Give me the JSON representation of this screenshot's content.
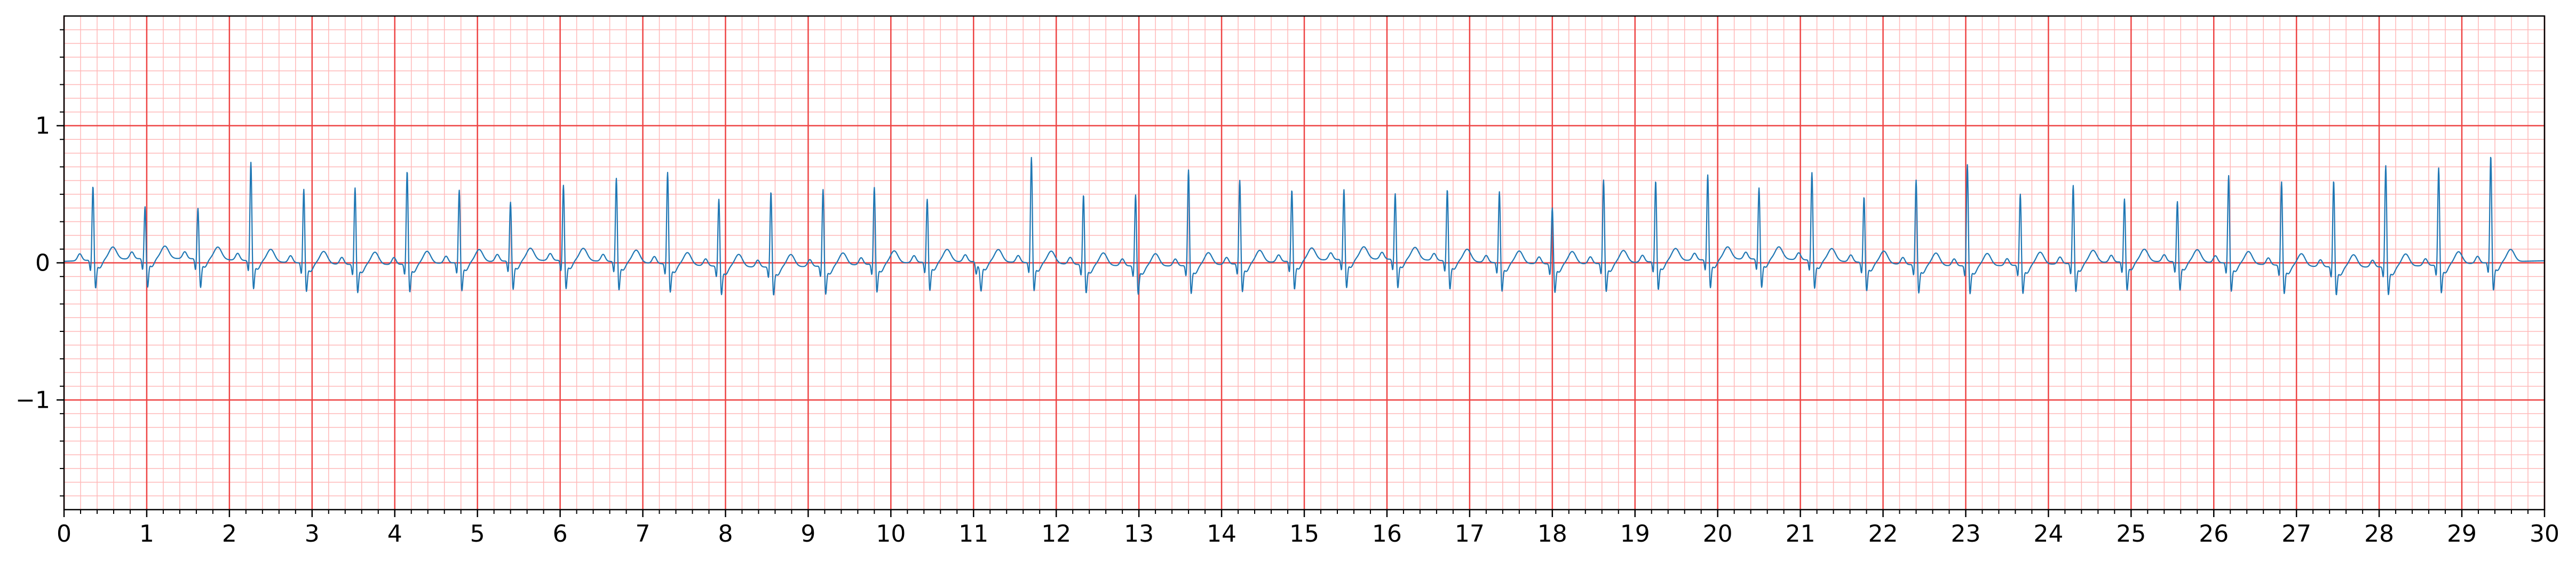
{
  "chart_data": {
    "type": "line",
    "title": "",
    "xlabel": "",
    "ylabel": "",
    "xlim": [
      0,
      30
    ],
    "ylim": [
      -1.8,
      1.8
    ],
    "x_ticks": [
      0,
      1,
      2,
      3,
      4,
      5,
      6,
      7,
      8,
      9,
      10,
      11,
      12,
      13,
      14,
      15,
      16,
      17,
      18,
      19,
      20,
      21,
      22,
      23,
      24,
      25,
      26,
      27,
      28,
      29,
      30
    ],
    "x_tick_labels": [
      "0",
      "1",
      "2",
      "3",
      "4",
      "5",
      "6",
      "7",
      "8",
      "9",
      "10",
      "11",
      "12",
      "13",
      "14",
      "15",
      "16",
      "17",
      "18",
      "19",
      "20",
      "21",
      "22",
      "23",
      "24",
      "25",
      "26",
      "27",
      "28",
      "29",
      "30"
    ],
    "y_ticks": [
      -1,
      0,
      1
    ],
    "y_tick_labels": [
      "−1",
      "0",
      "1"
    ],
    "grid": {
      "major": {
        "x_step": 1,
        "y_step": 1,
        "color": "#ee4444"
      },
      "minor": {
        "x_step": 0.2,
        "y_step": 0.1,
        "color": "#ffb8b8"
      }
    },
    "series": [
      {
        "color": "#1f77b4",
        "beats": [
          {
            "t": 0.35,
            "r": 0.48
          },
          {
            "t": 0.98,
            "r": 0.32
          },
          {
            "t": 1.62,
            "r": 0.31
          },
          {
            "t": 2.26,
            "r": 0.66
          },
          {
            "t": 2.9,
            "r": 0.48
          },
          {
            "t": 3.52,
            "r": 0.5
          },
          {
            "t": 4.15,
            "r": 0.62
          },
          {
            "t": 4.78,
            "r": 0.47
          },
          {
            "t": 5.4,
            "r": 0.37
          },
          {
            "t": 6.04,
            "r": 0.49
          },
          {
            "t": 6.68,
            "r": 0.55
          },
          {
            "t": 7.3,
            "r": 0.61
          },
          {
            "t": 7.92,
            "r": 0.43
          },
          {
            "t": 8.55,
            "r": 0.49
          },
          {
            "t": 9.18,
            "r": 0.5
          },
          {
            "t": 9.8,
            "r": 0.5
          },
          {
            "t": 10.44,
            "r": 0.4
          },
          {
            "t": 11.06,
            "r": -0.1
          },
          {
            "t": 11.7,
            "r": 0.71
          },
          {
            "t": 12.33,
            "r": 0.45
          },
          {
            "t": 12.96,
            "r": 0.46
          },
          {
            "t": 13.6,
            "r": 0.64
          },
          {
            "t": 14.22,
            "r": 0.55
          },
          {
            "t": 14.85,
            "r": 0.46
          },
          {
            "t": 15.48,
            "r": 0.45
          },
          {
            "t": 16.1,
            "r": 0.42
          },
          {
            "t": 16.73,
            "r": 0.46
          },
          {
            "t": 17.36,
            "r": 0.46
          },
          {
            "t": 18.0,
            "r": 0.35
          },
          {
            "t": 18.62,
            "r": 0.55
          },
          {
            "t": 19.25,
            "r": 0.53
          },
          {
            "t": 19.88,
            "r": 0.56
          },
          {
            "t": 20.5,
            "r": 0.46
          },
          {
            "t": 21.14,
            "r": 0.58
          },
          {
            "t": 21.77,
            "r": 0.42
          },
          {
            "t": 22.4,
            "r": 0.56
          },
          {
            "t": 23.02,
            "r": 0.68
          },
          {
            "t": 23.66,
            "r": 0.46
          },
          {
            "t": 24.3,
            "r": 0.51
          },
          {
            "t": 24.92,
            "r": 0.4
          },
          {
            "t": 25.56,
            "r": 0.38
          },
          {
            "t": 26.18,
            "r": 0.58
          },
          {
            "t": 26.82,
            "r": 0.55
          },
          {
            "t": 27.45,
            "r": 0.57
          },
          {
            "t": 28.08,
            "r": 0.68
          },
          {
            "t": 28.72,
            "r": 0.65
          },
          {
            "t": 29.35,
            "r": 0.72
          }
        ]
      }
    ]
  }
}
